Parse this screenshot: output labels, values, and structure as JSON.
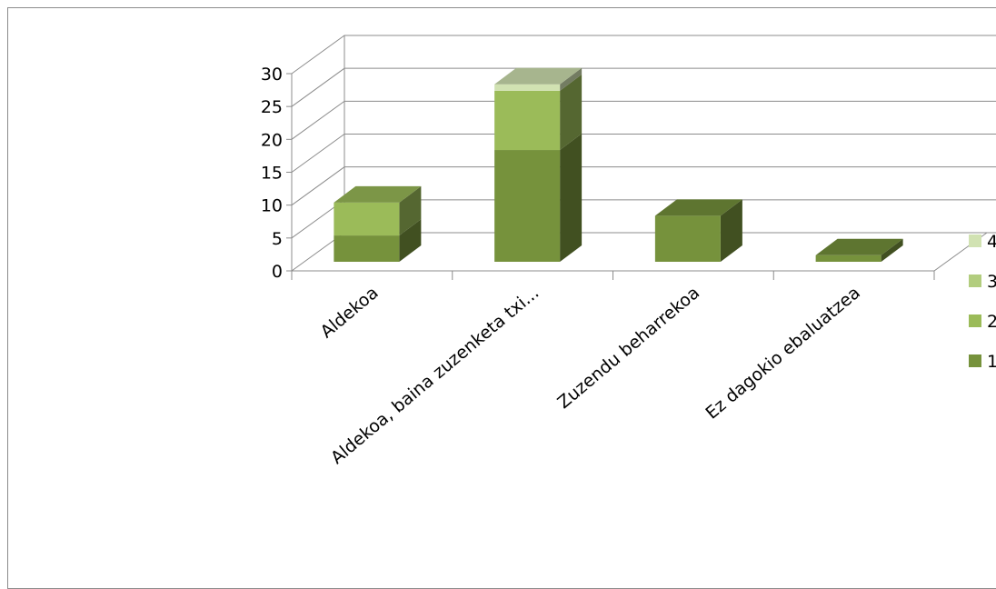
{
  "chart_data": {
    "type": "bar",
    "stacked": true,
    "three_d": true,
    "title": "",
    "xlabel": "",
    "ylabel": "",
    "ylim": [
      0,
      30
    ],
    "yticks": [
      0,
      5,
      10,
      15,
      20,
      25,
      30
    ],
    "grid": true,
    "legend_position": "right",
    "categories": [
      "Aldekoa",
      "Aldekoa, baina zuzenketa txi...",
      "Zuzendu beharrekoa",
      "Ez dagokio ebaluatzea"
    ],
    "series": [
      {
        "name": "1",
        "color": "#76923c",
        "values": [
          4,
          17,
          7,
          1
        ]
      },
      {
        "name": "2",
        "color": "#9bbb59",
        "values": [
          5,
          9,
          0,
          0
        ]
      },
      {
        "name": "3",
        "color": "#b2cd7e",
        "values": [
          0,
          0,
          0,
          0
        ]
      },
      {
        "name": "4",
        "color": "#d1e2b2",
        "values": [
          0,
          1,
          0,
          0
        ]
      }
    ],
    "legend_labels_visible": [
      "4",
      "3",
      "2",
      "1"
    ]
  }
}
